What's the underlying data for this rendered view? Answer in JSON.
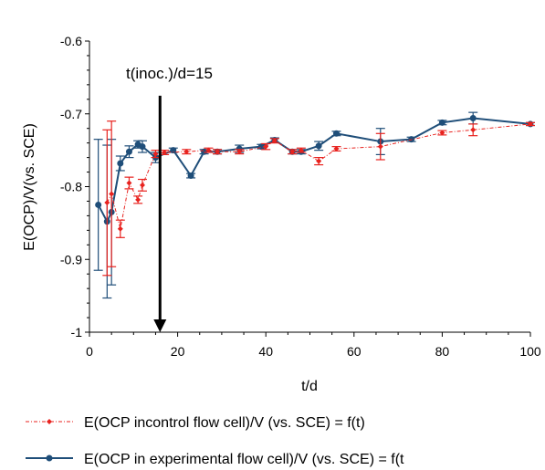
{
  "chart_data": {
    "type": "line",
    "xlabel": "t/d",
    "ylabel": "E(OCP)/V(vs. SCE)",
    "xlim": [
      0,
      100
    ],
    "ylim": [
      -1,
      -0.6
    ],
    "y_reversed": true,
    "x_ticks": [
      0,
      20,
      40,
      60,
      80,
      100
    ],
    "x_tick_labels": [
      "0",
      "20",
      "40",
      "60",
      "80",
      "100"
    ],
    "y_ticks": [
      -0.6,
      -0.7,
      -0.8,
      -0.9,
      -1
    ],
    "y_tick_labels": [
      "-0.6",
      "-0.7",
      "-0.8",
      "-0.9",
      "-1"
    ],
    "grid": false,
    "legend_position": "bottom",
    "annotation": {
      "text": "t(inoc.)/d=15",
      "x": 16,
      "y_from": -0.675,
      "y_to": -1
    },
    "series": [
      {
        "name": "E(OCP incontrol flow cell)/V (vs. SCE) = f(t)",
        "color": "#e8221e",
        "style": "dash-dot",
        "marker": "diamond",
        "x": [
          4,
          5,
          7,
          9,
          11,
          12,
          15,
          17,
          22,
          27,
          29,
          34,
          40,
          42,
          46,
          48,
          52,
          56,
          66,
          80,
          87,
          100
        ],
        "y": [
          -0.822,
          -0.81,
          -0.858,
          -0.795,
          -0.818,
          -0.798,
          -0.755,
          -0.753,
          -0.752,
          -0.75,
          -0.752,
          -0.752,
          -0.745,
          -0.737,
          -0.752,
          -0.75,
          -0.765,
          -0.748,
          -0.745,
          -0.726,
          -0.722,
          -0.714
        ],
        "yerr": [
          0.1,
          0.1,
          0.012,
          0.008,
          0.005,
          0.008,
          0.005,
          0.003,
          0.003,
          0.003,
          0.003,
          0.003,
          0.004,
          0.003,
          0.003,
          0.003,
          0.005,
          0.003,
          0.018,
          0.003,
          0.008,
          0.002
        ]
      },
      {
        "name": "E(OCP in experimental flow cell)/V (vs. SCE) = f(t",
        "color": "#1f4e79",
        "style": "solid",
        "marker": "circle",
        "x": [
          2,
          4,
          5,
          7,
          9,
          11,
          12,
          15,
          19,
          23,
          26,
          29,
          34,
          39,
          42,
          46,
          48,
          52,
          56,
          66,
          73,
          80,
          87,
          100
        ],
        "y": [
          -0.825,
          -0.848,
          -0.835,
          -0.768,
          -0.752,
          -0.742,
          -0.745,
          -0.76,
          -0.75,
          -0.785,
          -0.752,
          -0.752,
          -0.748,
          -0.745,
          -0.736,
          -0.752,
          -0.752,
          -0.744,
          -0.727,
          -0.738,
          -0.735,
          -0.712,
          -0.706,
          -0.714
        ],
        "yerr": [
          0.09,
          0.105,
          0.1,
          0.01,
          0.008,
          0.005,
          0.008,
          0.007,
          0.003,
          0.003,
          0.003,
          0.003,
          0.005,
          0.003,
          0.003,
          0.003,
          0.003,
          0.006,
          0.003,
          0.018,
          0.003,
          0.003,
          0.008,
          0.002
        ]
      }
    ]
  }
}
